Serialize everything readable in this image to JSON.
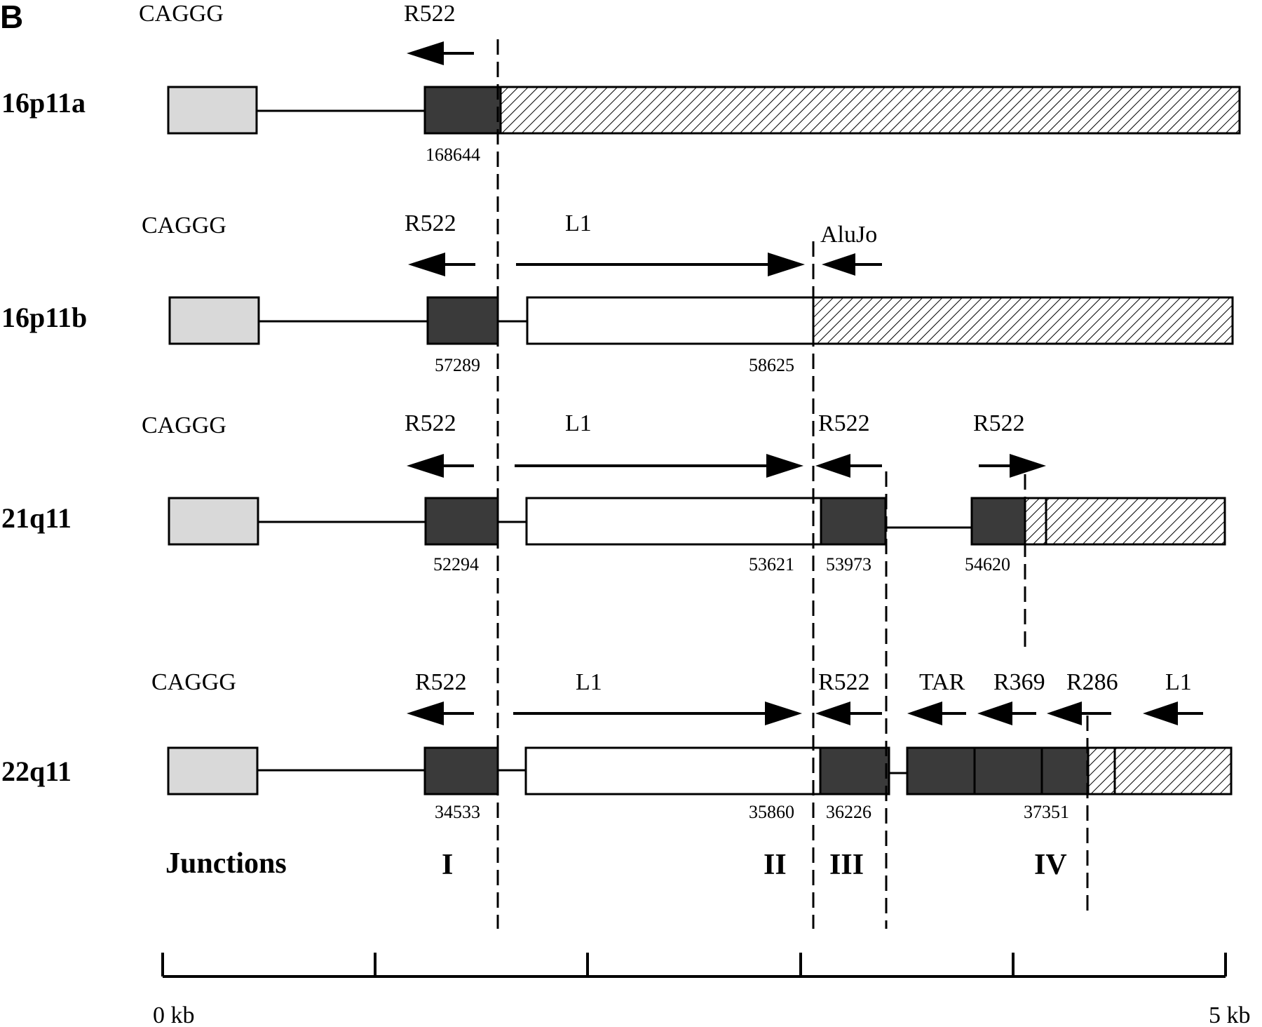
{
  "panel_letter": "B",
  "rows": [
    {
      "id": "16p11a",
      "label": "16p11a",
      "element_labels": {
        "caggg": "CAGGG",
        "r522_left": "R522"
      },
      "positions": [
        "168644"
      ]
    },
    {
      "id": "16p11b",
      "label": "16p11b",
      "element_labels": {
        "caggg": "CAGGG",
        "r522_left": "R522",
        "l1": "L1",
        "alujo": "AluJo"
      },
      "positions": [
        "57289",
        "58625"
      ]
    },
    {
      "id": "21q11",
      "label": "21q11",
      "element_labels": {
        "caggg": "CAGGG",
        "r522_left": "R522",
        "l1": "L1",
        "r522_mid": "R522",
        "r522_right": "R522"
      },
      "positions": [
        "52294",
        "53621",
        "53973",
        "54620"
      ]
    },
    {
      "id": "22q11",
      "label": "22q11",
      "element_labels": {
        "caggg": "CAGGG",
        "r522_left": "R522",
        "l1": "L1",
        "r522_mid": "R522",
        "tar": "TAR",
        "r369": "R369",
        "r286": "R286",
        "l1_right": "L1"
      },
      "positions": [
        "34533",
        "35860",
        "36226",
        "37351"
      ]
    }
  ],
  "junctions": {
    "title": "Junctions",
    "labels": [
      "I",
      "II",
      "III",
      "IV"
    ]
  },
  "scale": {
    "start_label": "0 kb",
    "end_label": "5 kb",
    "divisions": 5
  },
  "colors": {
    "caggg_box": "#d9d9d9",
    "repeat_box": "#3a3a3a",
    "l1_box": "#ffffff",
    "hatch": "#000000"
  }
}
